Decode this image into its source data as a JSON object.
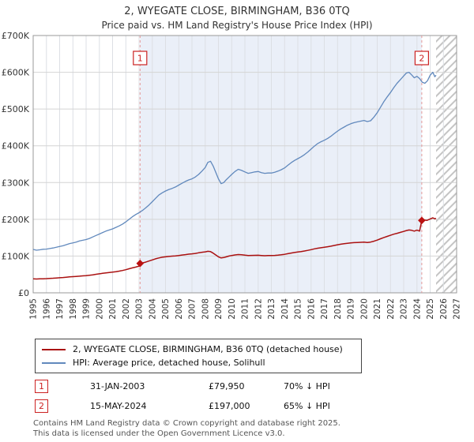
{
  "page": {
    "title": "2, WYEGATE CLOSE, BIRMINGHAM, B36 0TQ",
    "subtitle": "Price paid vs. HM Land Registry's House Price Index (HPI)"
  },
  "chart_data": {
    "type": "line",
    "title": "2, WYEGATE CLOSE, BIRMINGHAM, B36 0TQ",
    "subtitle": "Price paid vs. HM Land Registry's House Price Index (HPI)",
    "xlim": [
      1995,
      2027
    ],
    "ylim": [
      0,
      700000
    ],
    "grid": true,
    "legend_position": "bottom",
    "x_ticks": [
      1995,
      1996,
      1997,
      1998,
      1999,
      2000,
      2001,
      2002,
      2003,
      2004,
      2005,
      2006,
      2007,
      2008,
      2009,
      2010,
      2011,
      2012,
      2013,
      2014,
      2015,
      2016,
      2017,
      2018,
      2019,
      2020,
      2021,
      2022,
      2023,
      2024,
      2025,
      2026,
      2027
    ],
    "y_tick_labels": [
      "£0",
      "£100K",
      "£200K",
      "£300K",
      "£400K",
      "£500K",
      "£600K",
      "£700K"
    ],
    "band": [
      2003.08,
      2024.37
    ],
    "hatch_start": 2025.45,
    "colors": {
      "band": "#eaeff8",
      "grid_v": "#dcdfe4",
      "grid_h": "#d4d4d4",
      "frame": "#999999",
      "dashed": "#e59999",
      "marker": "#bb1111",
      "marker_box": "#cc2222",
      "hatch": "#c4c4c4"
    },
    "series": [
      {
        "name": "2, WYEGATE CLOSE, BIRMINGHAM, B36 0TQ (detached house)",
        "color": "#aa1111",
        "width": 1.5,
        "points": [
          [
            1995.0,
            38000
          ],
          [
            1995.25,
            37600
          ],
          [
            1995.5,
            37900
          ],
          [
            1995.75,
            38300
          ],
          [
            1996.0,
            38700
          ],
          [
            1996.25,
            39200
          ],
          [
            1996.5,
            39700
          ],
          [
            1996.75,
            40300
          ],
          [
            1997.0,
            41000
          ],
          [
            1997.25,
            41700
          ],
          [
            1997.5,
            42500
          ],
          [
            1997.75,
            43300
          ],
          [
            1998.0,
            44000
          ],
          [
            1998.25,
            44700
          ],
          [
            1998.5,
            45400
          ],
          [
            1998.75,
            46100
          ],
          [
            1999.0,
            46800
          ],
          [
            1999.25,
            47800
          ],
          [
            1999.5,
            49000
          ],
          [
            1999.75,
            50400
          ],
          [
            2000.0,
            51800
          ],
          [
            2000.25,
            53000
          ],
          [
            2000.5,
            54200
          ],
          [
            2000.75,
            55200
          ],
          [
            2001.0,
            56300
          ],
          [
            2001.25,
            57600
          ],
          [
            2001.5,
            59000
          ],
          [
            2001.75,
            60800
          ],
          [
            2002.0,
            63000
          ],
          [
            2002.25,
            65400
          ],
          [
            2002.5,
            67800
          ],
          [
            2002.75,
            70000
          ],
          [
            2003.0,
            72500
          ],
          [
            2003.08,
            79950
          ],
          [
            2003.25,
            81200
          ],
          [
            2003.5,
            83500
          ],
          [
            2003.75,
            86500
          ],
          [
            2004.0,
            89500
          ],
          [
            2004.25,
            92500
          ],
          [
            2004.5,
            95000
          ],
          [
            2004.75,
            96800
          ],
          [
            2005.0,
            98000
          ],
          [
            2005.25,
            99000
          ],
          [
            2005.5,
            99800
          ],
          [
            2005.75,
            100500
          ],
          [
            2006.0,
            101500
          ],
          [
            2006.25,
            102800
          ],
          [
            2006.5,
            104000
          ],
          [
            2006.75,
            105200
          ],
          [
            2007.0,
            106000
          ],
          [
            2007.25,
            107200
          ],
          [
            2007.5,
            108800
          ],
          [
            2007.75,
            110300
          ],
          [
            2008.0,
            111500
          ],
          [
            2008.2,
            113000
          ],
          [
            2008.4,
            112000
          ],
          [
            2008.6,
            108000
          ],
          [
            2008.8,
            103000
          ],
          [
            2009.0,
            98000
          ],
          [
            2009.2,
            95000
          ],
          [
            2009.4,
            96000
          ],
          [
            2009.6,
            98000
          ],
          [
            2009.8,
            100000
          ],
          [
            2010.0,
            101500
          ],
          [
            2010.25,
            103000
          ],
          [
            2010.5,
            104200
          ],
          [
            2010.75,
            103500
          ],
          [
            2011.0,
            102500
          ],
          [
            2011.25,
            101500
          ],
          [
            2011.5,
            101800
          ],
          [
            2011.75,
            102000
          ],
          [
            2012.0,
            102300
          ],
          [
            2012.25,
            101500
          ],
          [
            2012.5,
            101000
          ],
          [
            2012.75,
            101300
          ],
          [
            2013.0,
            101300
          ],
          [
            2013.25,
            101800
          ],
          [
            2013.5,
            102500
          ],
          [
            2013.75,
            103500
          ],
          [
            2014.0,
            104800
          ],
          [
            2014.25,
            106500
          ],
          [
            2014.5,
            108200
          ],
          [
            2014.75,
            109800
          ],
          [
            2015.0,
            111000
          ],
          [
            2015.25,
            112300
          ],
          [
            2015.5,
            113800
          ],
          [
            2015.75,
            115500
          ],
          [
            2016.0,
            117500
          ],
          [
            2016.25,
            119500
          ],
          [
            2016.5,
            121300
          ],
          [
            2016.75,
            122700
          ],
          [
            2017.0,
            124000
          ],
          [
            2017.25,
            125400
          ],
          [
            2017.5,
            127000
          ],
          [
            2017.75,
            128800
          ],
          [
            2018.0,
            130800
          ],
          [
            2018.25,
            132300
          ],
          [
            2018.5,
            133500
          ],
          [
            2018.75,
            134600
          ],
          [
            2019.0,
            135800
          ],
          [
            2019.25,
            136600
          ],
          [
            2019.5,
            137000
          ],
          [
            2019.75,
            137400
          ],
          [
            2020.0,
            137800
          ],
          [
            2020.25,
            137000
          ],
          [
            2020.5,
            138000
          ],
          [
            2020.75,
            140500
          ],
          [
            2021.0,
            143500
          ],
          [
            2021.25,
            147000
          ],
          [
            2021.5,
            150500
          ],
          [
            2021.75,
            153500
          ],
          [
            2022.0,
            156500
          ],
          [
            2022.25,
            159500
          ],
          [
            2022.5,
            162000
          ],
          [
            2022.75,
            164500
          ],
          [
            2023.0,
            167000
          ],
          [
            2023.2,
            169500
          ],
          [
            2023.4,
            171000
          ],
          [
            2023.6,
            170000
          ],
          [
            2023.8,
            168000
          ],
          [
            2024.0,
            170500
          ],
          [
            2024.2,
            168000
          ],
          [
            2024.37,
            197000
          ],
          [
            2024.5,
            198500
          ],
          [
            2024.75,
            197000
          ],
          [
            2025.0,
            201000
          ],
          [
            2025.2,
            204000
          ],
          [
            2025.35,
            201500
          ],
          [
            2025.45,
            202500
          ]
        ]
      },
      {
        "name": "HPI: Average price, detached house, Solihull",
        "color": "#6189bd",
        "width": 1.3,
        "points": [
          [
            1995.0,
            118000
          ],
          [
            1995.25,
            116000
          ],
          [
            1995.5,
            117000
          ],
          [
            1995.75,
            118500
          ],
          [
            1996.0,
            119000
          ],
          [
            1996.25,
            120500
          ],
          [
            1996.5,
            122000
          ],
          [
            1996.75,
            124000
          ],
          [
            1997.0,
            126000
          ],
          [
            1997.25,
            128000
          ],
          [
            1997.5,
            131000
          ],
          [
            1997.75,
            134000
          ],
          [
            1998.0,
            136000
          ],
          [
            1998.25,
            138000
          ],
          [
            1998.5,
            141000
          ],
          [
            1998.75,
            143000
          ],
          [
            1999.0,
            145000
          ],
          [
            1999.25,
            148000
          ],
          [
            1999.5,
            152000
          ],
          [
            1999.75,
            156000
          ],
          [
            2000.0,
            160000
          ],
          [
            2000.25,
            164000
          ],
          [
            2000.5,
            168000
          ],
          [
            2000.75,
            171000
          ],
          [
            2001.0,
            174000
          ],
          [
            2001.25,
            178000
          ],
          [
            2001.5,
            182000
          ],
          [
            2001.75,
            187000
          ],
          [
            2002.0,
            193000
          ],
          [
            2002.25,
            200000
          ],
          [
            2002.5,
            207000
          ],
          [
            2002.75,
            213000
          ],
          [
            2003.0,
            218000
          ],
          [
            2003.25,
            224000
          ],
          [
            2003.5,
            231000
          ],
          [
            2003.75,
            239000
          ],
          [
            2004.0,
            248000
          ],
          [
            2004.25,
            257000
          ],
          [
            2004.5,
            266000
          ],
          [
            2004.75,
            272000
          ],
          [
            2005.0,
            277000
          ],
          [
            2005.25,
            281000
          ],
          [
            2005.5,
            284000
          ],
          [
            2005.75,
            288000
          ],
          [
            2006.0,
            293000
          ],
          [
            2006.25,
            298000
          ],
          [
            2006.5,
            303000
          ],
          [
            2006.75,
            307000
          ],
          [
            2007.0,
            310000
          ],
          [
            2007.25,
            315000
          ],
          [
            2007.5,
            322000
          ],
          [
            2007.75,
            331000
          ],
          [
            2008.0,
            341000
          ],
          [
            2008.2,
            355000
          ],
          [
            2008.4,
            358000
          ],
          [
            2008.6,
            345000
          ],
          [
            2008.8,
            328000
          ],
          [
            2009.0,
            310000
          ],
          [
            2009.2,
            297000
          ],
          [
            2009.4,
            300000
          ],
          [
            2009.6,
            308000
          ],
          [
            2009.8,
            315000
          ],
          [
            2010.0,
            322000
          ],
          [
            2010.25,
            330000
          ],
          [
            2010.5,
            336000
          ],
          [
            2010.75,
            333000
          ],
          [
            2011.0,
            329000
          ],
          [
            2011.25,
            325000
          ],
          [
            2011.5,
            327000
          ],
          [
            2011.75,
            329000
          ],
          [
            2012.0,
            330000
          ],
          [
            2012.25,
            327000
          ],
          [
            2012.5,
            325000
          ],
          [
            2012.75,
            326000
          ],
          [
            2013.0,
            326000
          ],
          [
            2013.25,
            328000
          ],
          [
            2013.5,
            331000
          ],
          [
            2013.75,
            335000
          ],
          [
            2014.0,
            340000
          ],
          [
            2014.25,
            347000
          ],
          [
            2014.5,
            354000
          ],
          [
            2014.75,
            360000
          ],
          [
            2015.0,
            365000
          ],
          [
            2015.25,
            370000
          ],
          [
            2015.5,
            376000
          ],
          [
            2015.75,
            383000
          ],
          [
            2016.0,
            391000
          ],
          [
            2016.25,
            399000
          ],
          [
            2016.5,
            406000
          ],
          [
            2016.75,
            411000
          ],
          [
            2017.0,
            415000
          ],
          [
            2017.25,
            420000
          ],
          [
            2017.5,
            426000
          ],
          [
            2017.75,
            433000
          ],
          [
            2018.0,
            440000
          ],
          [
            2018.25,
            446000
          ],
          [
            2018.5,
            451000
          ],
          [
            2018.75,
            456000
          ],
          [
            2019.0,
            460000
          ],
          [
            2019.25,
            463000
          ],
          [
            2019.5,
            465000
          ],
          [
            2019.75,
            467000
          ],
          [
            2020.0,
            469000
          ],
          [
            2020.25,
            466000
          ],
          [
            2020.5,
            468000
          ],
          [
            2020.75,
            478000
          ],
          [
            2021.0,
            490000
          ],
          [
            2021.25,
            505000
          ],
          [
            2021.5,
            520000
          ],
          [
            2021.75,
            533000
          ],
          [
            2022.0,
            545000
          ],
          [
            2022.25,
            558000
          ],
          [
            2022.5,
            570000
          ],
          [
            2022.75,
            580000
          ],
          [
            2023.0,
            590000
          ],
          [
            2023.2,
            598000
          ],
          [
            2023.4,
            600000
          ],
          [
            2023.6,
            593000
          ],
          [
            2023.8,
            585000
          ],
          [
            2024.0,
            589000
          ],
          [
            2024.2,
            583000
          ],
          [
            2024.4,
            573000
          ],
          [
            2024.6,
            570000
          ],
          [
            2024.8,
            577000
          ],
          [
            2025.0,
            592000
          ],
          [
            2025.2,
            600000
          ],
          [
            2025.35,
            588000
          ],
          [
            2025.45,
            592000
          ]
        ]
      }
    ],
    "sales": [
      {
        "label": "1",
        "year": 2003.08,
        "price": 79950,
        "date": "31-JAN-2003",
        "price_label": "£79,950",
        "vs_hpi": "70% ↓ HPI"
      },
      {
        "label": "2",
        "year": 2024.37,
        "price": 197000,
        "date": "15-MAY-2024",
        "price_label": "£197,000",
        "vs_hpi": "65% ↓ HPI"
      }
    ]
  },
  "footer": {
    "line1": "Contains HM Land Registry data © Crown copyright and database right 2025.",
    "line2": "This data is licensed under the Open Government Licence v3.0."
  }
}
